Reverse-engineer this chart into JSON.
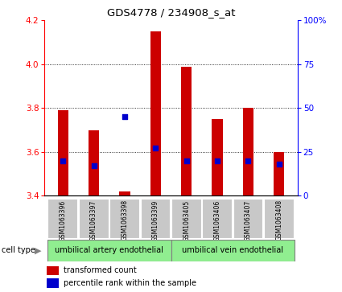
{
  "title": "GDS4778 / 234908_s_at",
  "samples": [
    "GSM1063396",
    "GSM1063397",
    "GSM1063398",
    "GSM1063399",
    "GSM1063405",
    "GSM1063406",
    "GSM1063407",
    "GSM1063408"
  ],
  "red_values": [
    3.79,
    3.7,
    3.42,
    4.15,
    3.99,
    3.75,
    3.8,
    3.6
  ],
  "blue_values": [
    20,
    17,
    45,
    27,
    20,
    20,
    20,
    18
  ],
  "ylim_left": [
    3.4,
    4.2
  ],
  "ylim_right": [
    0,
    100
  ],
  "yticks_left": [
    3.4,
    3.6,
    3.8,
    4.0,
    4.2
  ],
  "yticks_right": [
    0,
    25,
    50,
    75,
    100
  ],
  "ytick_labels_right": [
    "0",
    "25",
    "50",
    "75",
    "100%"
  ],
  "bar_baseline": 3.4,
  "bar_width": 0.35,
  "bar_color": "#cc0000",
  "dot_color": "#0000cc",
  "cell_type_groups": [
    {
      "label": "umbilical artery endothelial",
      "start": 0,
      "end": 4
    },
    {
      "label": "umbilical vein endothelial",
      "start": 4,
      "end": 8
    }
  ],
  "cell_type_label": "cell type",
  "legend_red": "transformed count",
  "legend_blue": "percentile rank within the sample",
  "background_color": "#ffffff",
  "tick_bg_color": "#c8c8c8",
  "cell_type_bg_color": "#90EE90"
}
